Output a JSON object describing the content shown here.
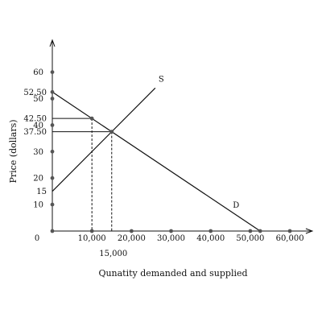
{
  "chart_data": {
    "type": "line",
    "title": "",
    "xlabel": "Qunatity demanded and supplied",
    "ylabel": "Price (dollars)",
    "xlim": [
      0,
      62000
    ],
    "ylim": [
      0,
      73
    ],
    "grid": false,
    "origin_label": "0",
    "x_ticks": [
      {
        "value": 10000,
        "label": "10,000"
      },
      {
        "value": 20000,
        "label": "20,000"
      },
      {
        "value": 30000,
        "label": "30,000"
      },
      {
        "value": 40000,
        "label": "40,000"
      },
      {
        "value": 50000,
        "label": "50,000"
      },
      {
        "value": 60000,
        "label": "60,000"
      }
    ],
    "y_ticks": [
      {
        "value": 10,
        "label": "10"
      },
      {
        "value": 20,
        "label": "20"
      },
      {
        "value": 30,
        "label": "30"
      },
      {
        "value": 40,
        "label": "40"
      },
      {
        "value": 50,
        "label": "50"
      },
      {
        "value": 60,
        "label": "60"
      }
    ],
    "y_annotations": [
      {
        "value": 15,
        "label": "15"
      },
      {
        "value": 37.5,
        "label": "37.50"
      },
      {
        "value": 42.5,
        "label": "42.50"
      },
      {
        "value": 52.5,
        "label": "52.50"
      }
    ],
    "x_annotations": [
      {
        "value": 15000,
        "label": "15,000"
      }
    ],
    "series": [
      {
        "name": "S",
        "x": [
          0,
          26000
        ],
        "y": [
          15,
          54
        ]
      },
      {
        "name": "D",
        "x": [
          0,
          52500
        ],
        "y": [
          52.5,
          0
        ]
      }
    ],
    "reference_lines": [
      {
        "from": [
          0,
          42.5
        ],
        "to": [
          10000,
          42.5
        ],
        "style": "solid"
      },
      {
        "from": [
          0,
          37.5
        ],
        "to": [
          15000,
          37.5
        ],
        "style": "solid"
      },
      {
        "from": [
          10000,
          42.5
        ],
        "to": [
          10000,
          0
        ],
        "style": "dashed"
      },
      {
        "from": [
          15000,
          37.5
        ],
        "to": [
          15000,
          0
        ],
        "style": "dashed"
      }
    ],
    "points": [
      {
        "x": 0,
        "y": 60
      },
      {
        "x": 0,
        "y": 52.5
      },
      {
        "x": 0,
        "y": 50
      },
      {
        "x": 0,
        "y": 40
      },
      {
        "x": 0,
        "y": 30
      },
      {
        "x": 0,
        "y": 20
      },
      {
        "x": 0,
        "y": 10
      },
      {
        "x": 0,
        "y": 0
      },
      {
        "x": 10000,
        "y": 0
      },
      {
        "x": 20000,
        "y": 0
      },
      {
        "x": 30000,
        "y": 0
      },
      {
        "x": 40000,
        "y": 0
      },
      {
        "x": 50000,
        "y": 0
      },
      {
        "x": 52500,
        "y": 0
      },
      {
        "x": 60000,
        "y": 0
      },
      {
        "x": 10000,
        "y": 42.5
      },
      {
        "x": 15000,
        "y": 37.5
      }
    ],
    "colors": {
      "ink": "#111111",
      "dot": "#555555"
    }
  }
}
